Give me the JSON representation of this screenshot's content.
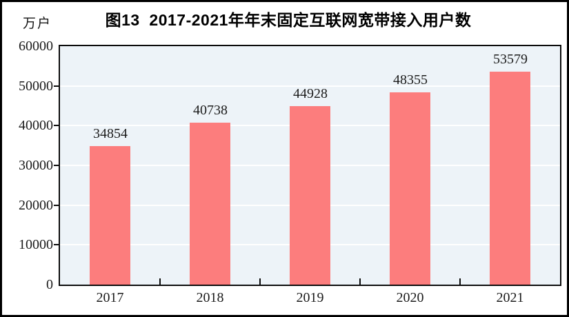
{
  "chart_data": {
    "type": "bar",
    "title": "图13  2017-2021年年末固定互联网宽带接入用户数",
    "ylabel": "万户",
    "xlabel": "",
    "categories": [
      "2017",
      "2018",
      "2019",
      "2020",
      "2021"
    ],
    "values": [
      34854,
      40738,
      44928,
      48355,
      53579
    ],
    "value_labels": [
      "34854",
      "40738",
      "44928",
      "48355",
      "53579"
    ],
    "ylim": [
      0,
      60000
    ],
    "ytick_step": 10000,
    "yticks": [
      "0",
      "10000",
      "20000",
      "30000",
      "40000",
      "50000",
      "60000"
    ],
    "grid": true,
    "legend": "none",
    "bar_color": "#FC7D7D",
    "plot_bg_color": "#EDF3F8",
    "gridline_color": "#FFFFFF",
    "frame_color": "#0B0B0B"
  }
}
